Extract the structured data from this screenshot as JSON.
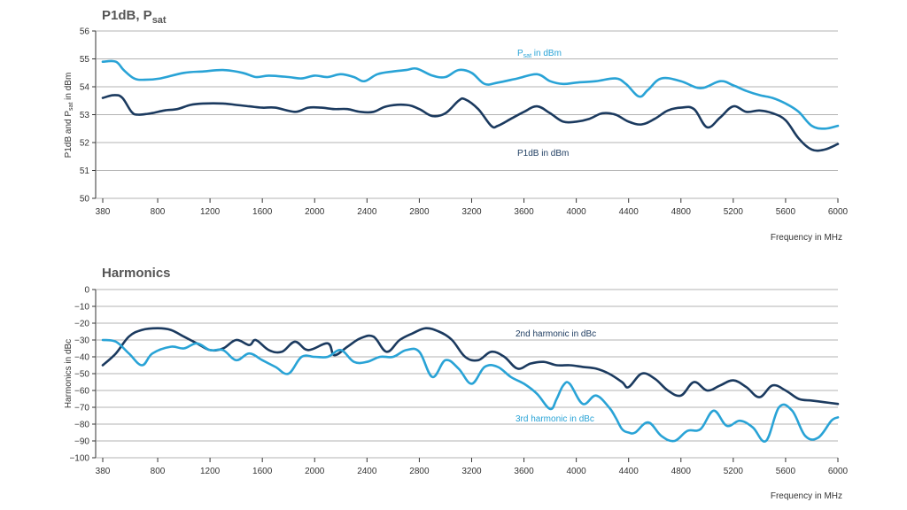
{
  "chart_data": [
    {
      "type": "line",
      "title": "P1dB, P",
      "title_sub": "sat",
      "ylabel_parts": [
        "P1dB and P",
        "sat",
        " in dBm"
      ],
      "xlabel": "Frequency in MHz",
      "ylim": [
        50,
        56
      ],
      "yticks": [
        50,
        51,
        52,
        53,
        54,
        55,
        56
      ],
      "xlim": [
        380,
        6000
      ],
      "xticks": [
        380,
        800,
        1200,
        1600,
        2000,
        2400,
        2800,
        3200,
        3600,
        4000,
        4400,
        4800,
        5200,
        5600,
        6000
      ],
      "series": [
        {
          "name": "Psat in dBm",
          "label_parts": [
            "P",
            "sat",
            " in dBm"
          ],
          "color": "#29a3d6",
          "x": [
            380,
            480,
            540,
            620,
            700,
            820,
            1000,
            1150,
            1300,
            1450,
            1550,
            1650,
            1800,
            1900,
            2000,
            2100,
            2200,
            2300,
            2380,
            2480,
            2600,
            2700,
            2780,
            2900,
            3000,
            3100,
            3200,
            3300,
            3400,
            3550,
            3700,
            3800,
            3900,
            4000,
            4150,
            4300,
            4380,
            4480,
            4550,
            4650,
            4800,
            4950,
            5100,
            5200,
            5300,
            5400,
            5500,
            5600,
            5700,
            5800,
            5900,
            6000
          ],
          "y": [
            54.9,
            54.9,
            54.6,
            54.3,
            54.25,
            54.3,
            54.5,
            54.55,
            54.6,
            54.5,
            54.35,
            54.4,
            54.35,
            54.3,
            54.4,
            54.35,
            54.45,
            54.35,
            54.2,
            54.45,
            54.55,
            54.6,
            54.65,
            54.4,
            54.35,
            54.6,
            54.5,
            54.1,
            54.15,
            54.3,
            54.45,
            54.2,
            54.1,
            54.15,
            54.2,
            54.3,
            54.1,
            53.65,
            53.9,
            54.3,
            54.2,
            53.95,
            54.2,
            54.05,
            53.85,
            53.7,
            53.6,
            53.4,
            53.1,
            52.6,
            52.5,
            52.6
          ]
        },
        {
          "name": "P1dB in dBm",
          "label_parts": [
            "P1dB in dBm"
          ],
          "color": "#1b3a5f",
          "x": [
            380,
            470,
            530,
            600,
            650,
            750,
            850,
            950,
            1050,
            1150,
            1300,
            1400,
            1500,
            1600,
            1700,
            1850,
            1950,
            2050,
            2150,
            2250,
            2350,
            2450,
            2550,
            2700,
            2800,
            2900,
            3000,
            3100,
            3150,
            3250,
            3350,
            3400,
            3500,
            3600,
            3700,
            3800,
            3900,
            4000,
            4100,
            4200,
            4300,
            4400,
            4500,
            4600,
            4700,
            4800,
            4900,
            5000,
            5100,
            5200,
            5300,
            5400,
            5500,
            5600,
            5700,
            5800,
            5900,
            6000
          ],
          "y": [
            53.6,
            53.7,
            53.6,
            53.1,
            53.0,
            53.05,
            53.15,
            53.2,
            53.35,
            53.4,
            53.4,
            53.35,
            53.3,
            53.25,
            53.25,
            53.1,
            53.25,
            53.25,
            53.2,
            53.2,
            53.1,
            53.1,
            53.3,
            53.35,
            53.2,
            52.95,
            53.05,
            53.5,
            53.55,
            53.2,
            52.6,
            52.6,
            52.85,
            53.1,
            53.3,
            53.05,
            52.75,
            52.75,
            52.85,
            53.05,
            53.0,
            52.75,
            52.65,
            52.85,
            53.15,
            53.25,
            53.2,
            52.55,
            52.9,
            53.3,
            53.1,
            53.15,
            53.05,
            52.8,
            52.15,
            51.75,
            51.75,
            51.95
          ]
        }
      ]
    },
    {
      "type": "line",
      "title": "Harmonics",
      "ylabel_parts": [
        "Harmonics in dBc"
      ],
      "xlabel": "Frequency in MHz",
      "ylim": [
        -100,
        0
      ],
      "yticks": [
        0,
        -10,
        -20,
        -30,
        -40,
        -50,
        -60,
        -70,
        -80,
        -90,
        -100
      ],
      "xlim": [
        380,
        6000
      ],
      "xticks": [
        380,
        800,
        1200,
        1600,
        2000,
        2400,
        2800,
        3200,
        3600,
        4000,
        4400,
        4800,
        5200,
        5600,
        6000
      ],
      "series": [
        {
          "name": "2nd harmonic in dBc",
          "label_parts": [
            "2nd harmonic in dBc"
          ],
          "color": "#1b3a5f",
          "x": [
            380,
            480,
            580,
            680,
            800,
            900,
            1000,
            1100,
            1200,
            1300,
            1400,
            1500,
            1550,
            1650,
            1750,
            1850,
            1950,
            2100,
            2150,
            2250,
            2350,
            2450,
            2550,
            2650,
            2750,
            2850,
            2950,
            3050,
            3150,
            3250,
            3350,
            3450,
            3550,
            3650,
            3750,
            3850,
            3950,
            4050,
            4150,
            4250,
            4350,
            4400,
            4500,
            4600,
            4700,
            4800,
            4900,
            5000,
            5100,
            5200,
            5300,
            5400,
            5500,
            5600,
            5700,
            5800,
            5900,
            6000
          ],
          "y": [
            -45,
            -38,
            -28,
            -24,
            -23,
            -24,
            -28,
            -32,
            -36,
            -35,
            -30,
            -33,
            -30,
            -36,
            -37,
            -31,
            -36,
            -32,
            -39,
            -34,
            -29,
            -28,
            -37,
            -30,
            -26,
            -23,
            -25,
            -30,
            -40,
            -42,
            -37,
            -40,
            -47,
            -44,
            -43,
            -45,
            -45,
            -46,
            -47,
            -50,
            -55,
            -58,
            -50,
            -53,
            -60,
            -63,
            -55,
            -60,
            -57,
            -54,
            -58,
            -64,
            -57,
            -60,
            -65,
            -66,
            -67,
            -68
          ]
        },
        {
          "name": "3rd harmonic in dBc",
          "label_parts": [
            "3rd harmonic in dBc"
          ],
          "color": "#29a3d6",
          "x": [
            380,
            480,
            580,
            680,
            760,
            900,
            1000,
            1100,
            1200,
            1300,
            1400,
            1500,
            1600,
            1700,
            1800,
            1900,
            2000,
            2100,
            2200,
            2300,
            2400,
            2500,
            2600,
            2700,
            2800,
            2900,
            3000,
            3100,
            3200,
            3300,
            3400,
            3500,
            3600,
            3700,
            3800,
            3850,
            3900,
            3950,
            4050,
            4150,
            4250,
            4300,
            4350,
            4400,
            4450,
            4550,
            4650,
            4750,
            4850,
            4950,
            5050,
            5150,
            5250,
            5350,
            5450,
            5550,
            5650,
            5750,
            5850,
            5950,
            6000
          ],
          "y": [
            -30,
            -31,
            -38,
            -45,
            -38,
            -34,
            -35,
            -32,
            -36,
            -36,
            -42,
            -38,
            -42,
            -46,
            -50,
            -40,
            -40,
            -40,
            -36,
            -43,
            -43,
            -40,
            -40,
            -36,
            -37,
            -52,
            -42,
            -47,
            -56,
            -46,
            -46,
            -52,
            -56,
            -62,
            -71,
            -65,
            -57,
            -56,
            -68,
            -63,
            -70,
            -76,
            -83,
            -85,
            -85,
            -79,
            -87,
            -90,
            -84,
            -83,
            -72,
            -81,
            -78,
            -82,
            -90,
            -70,
            -72,
            -87,
            -88,
            -78,
            -76
          ]
        }
      ]
    }
  ]
}
